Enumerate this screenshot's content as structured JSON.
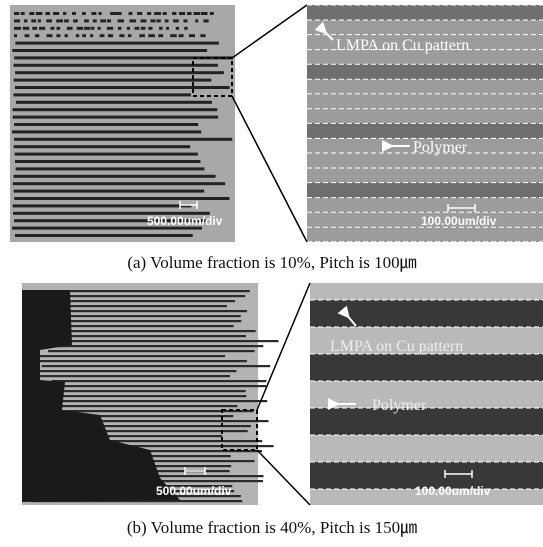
{
  "panels": [
    {
      "left_scale": "500.00um/div",
      "annotations": [
        "LMPA on Cu pattern",
        "Polymer"
      ],
      "right_scale": "100.00um/div",
      "caption": "(a) Volume fraction is 10%, Pitch is 100㎛"
    },
    {
      "left_scale": "500.00um/div",
      "annotations": [
        "LMPA on Cu pattern",
        "Polymer"
      ],
      "right_scale": "100.00um/div",
      "caption": "(b) Volume fraction is 40%, Pitch is 150㎛"
    }
  ]
}
